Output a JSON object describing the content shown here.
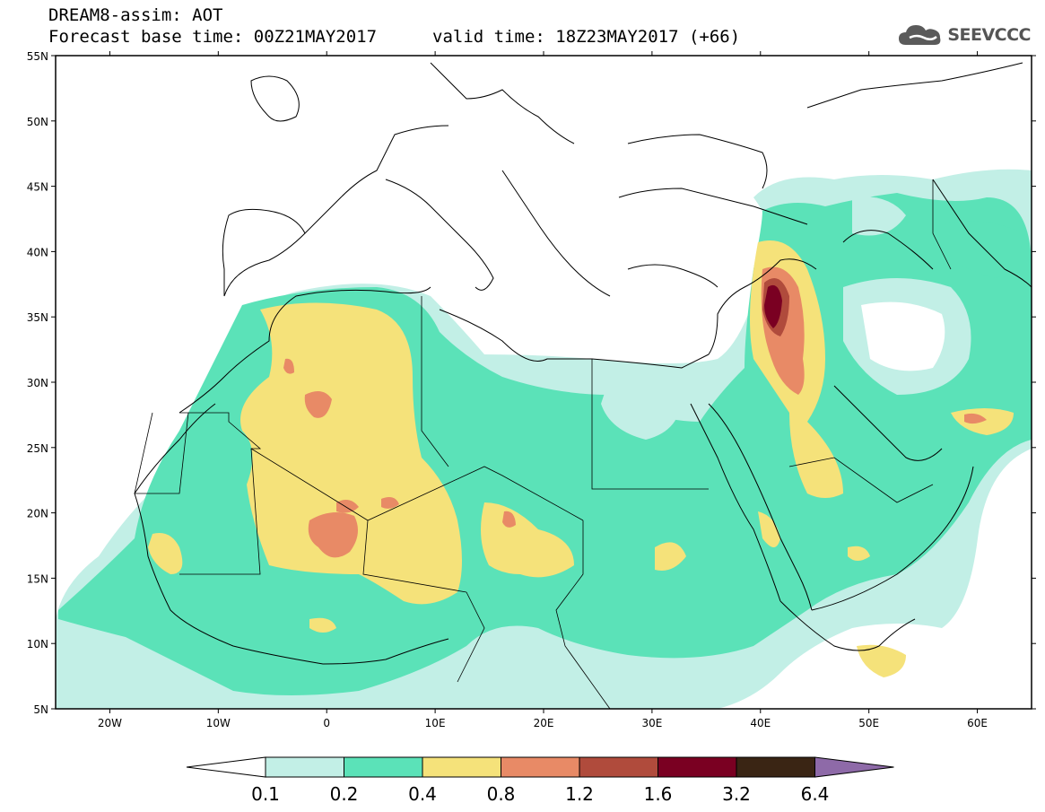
{
  "header": {
    "title": "DREAM8-assim: AOT",
    "base_time": "Forecast base time: 00Z21MAY2017",
    "valid_time": "valid time: 18Z23MAY2017 (+66)"
  },
  "logo": {
    "text": "SEEVCCC",
    "icon": "cloud-icon"
  },
  "map": {
    "lat_labels": [
      "55N",
      "50N",
      "45N",
      "40N",
      "35N",
      "30N",
      "25N",
      "20N",
      "15N",
      "10N",
      "5N"
    ],
    "lon_labels": [
      "20W",
      "10W",
      "0",
      "10E",
      "20E",
      "30E",
      "40E",
      "50E",
      "60E"
    ],
    "lon_range": [
      -25,
      65
    ],
    "lat_range": [
      5,
      55
    ],
    "background": "#ffffff",
    "coastline_color": "#000000"
  },
  "colorbar": {
    "labels": [
      "0.1",
      "0.2",
      "0.4",
      "0.8",
      "1.2",
      "1.6",
      "3.2",
      "6.4"
    ],
    "colors": [
      "#ffffff",
      "#c2efe6",
      "#5be2b8",
      "#f5e27a",
      "#e88a66",
      "#b04b3c",
      "#7a0022",
      "#3a2514",
      "#8e6aa8"
    ]
  }
}
